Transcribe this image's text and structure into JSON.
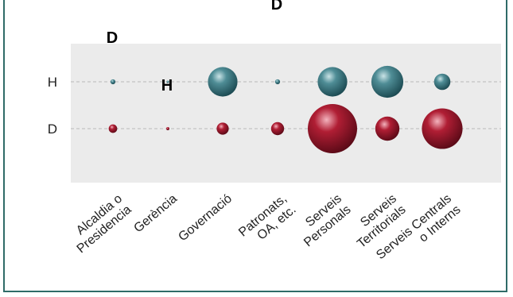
{
  "chart_data": {
    "type": "scatter",
    "title": "",
    "title_fragment": "D",
    "categories": [
      "Alcaldia o Presidencia",
      "Gerència",
      "Governació",
      "Patronats, OA, etc.",
      "Serveis Personals",
      "Serveis Territorials",
      "Serveis Centrals o Interns"
    ],
    "category_lines": [
      [
        "Alcaldia o",
        "Presidencia"
      ],
      [
        "Gerència"
      ],
      [
        "Governació"
      ],
      [
        "Patronats,",
        "OA, etc."
      ],
      [
        "Serveis",
        "Personals"
      ],
      [
        "Serveis",
        "Territorials"
      ],
      [
        "Serveis Centrals",
        "o Interns"
      ]
    ],
    "rows": [
      "H",
      "D"
    ],
    "series": [
      {
        "name": "H",
        "color": "#2e6f7a",
        "values": [
          1,
          0,
          36,
          1,
          36,
          42,
          11
        ]
      },
      {
        "name": "D",
        "color": "#8e1426",
        "values": [
          3,
          0.4,
          6,
          7,
          100,
          24,
          68
        ]
      }
    ],
    "legend_labels": [
      "D",
      "H"
    ],
    "grid": true
  }
}
